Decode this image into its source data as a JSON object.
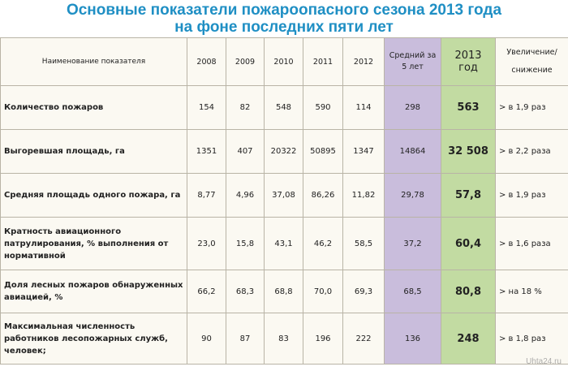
{
  "title": {
    "line1": "Основные  показатели пожароопасного сезона 2013 года",
    "line2": "на фоне последних пяти лет"
  },
  "table": {
    "headers": {
      "name": "Наименование  показателя",
      "years": [
        "2008",
        "2009",
        "2010",
        "2011",
        "2012"
      ],
      "avg": "Средний за 5 лет",
      "y2013": "2013 год",
      "change_line1": "Увеличение/",
      "change_line2": "снижение"
    },
    "rows": [
      {
        "name": "Количество пожаров",
        "values": [
          "154",
          "82",
          "548",
          "590",
          "114"
        ],
        "avg": "298",
        "y2013": "563",
        "change": "> в 1,9 раз"
      },
      {
        "name": "Выгоревшая площадь, га",
        "values": [
          "1351",
          "407",
          "20322",
          "50895",
          "1347"
        ],
        "avg": "14864",
        "y2013": "32 508",
        "change": "> в 2,2 раза"
      },
      {
        "name": "Средняя площадь одного пожара, га",
        "values": [
          "8,77",
          "4,96",
          "37,08",
          "86,26",
          "11,82"
        ],
        "avg": "29,78",
        "y2013": "57,8",
        "change": "> в 1,9 раз"
      },
      {
        "name": "Кратность авиационного патрулирования, % выполнения от нормативной",
        "values": [
          "23,0",
          "15,8",
          "43,1",
          "46,2",
          "58,5"
        ],
        "avg": "37,2",
        "y2013": "60,4",
        "change": "> в 1,6 раза"
      },
      {
        "name": "Доля лесных пожаров обнаруженных авиацией, %",
        "values": [
          "66,2",
          "68,3",
          "68,8",
          "70,0",
          "69,3"
        ],
        "avg": "68,5",
        "y2013": "80,8",
        "change": "> на 18 %"
      },
      {
        "name": "Максимальная численность работников лесопожарных служб, человек;",
        "values": [
          "90",
          "87",
          "83",
          "196",
          "222"
        ],
        "avg": "136",
        "y2013": "248",
        "change": "> в 1,8 раз"
      }
    ]
  },
  "watermark": "Uhta24.ru"
}
